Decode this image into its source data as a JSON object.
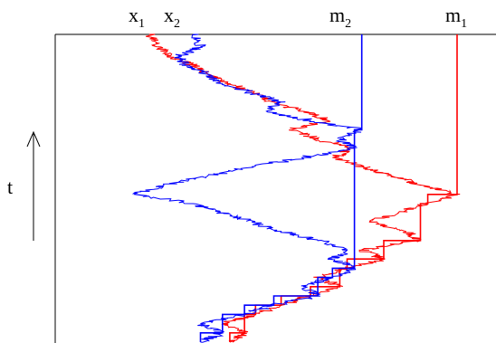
{
  "chart_data": {
    "type": "line",
    "title": "",
    "xlabel": "",
    "ylabel": "t",
    "time_arrow": "up",
    "top_labels": [
      {
        "base": "x",
        "sub": "1"
      },
      {
        "base": "x",
        "sub": "2"
      },
      {
        "base": "m",
        "sub": "2"
      },
      {
        "base": "m",
        "sub": "1"
      }
    ],
    "grid": false,
    "legend": "none",
    "series": [
      {
        "color": "#ff0000",
        "t": [
          0.0,
          0.03,
          0.06,
          0.09,
          0.12,
          0.15,
          0.18,
          0.21,
          0.24,
          0.27,
          0.3,
          0.33,
          0.36,
          0.39,
          0.42,
          0.45,
          0.48,
          0.51,
          0.54,
          0.57,
          0.6,
          0.63,
          0.66,
          0.69,
          0.72,
          0.75,
          0.78,
          0.81,
          0.84,
          0.87,
          0.9,
          0.93,
          0.96,
          1.0
        ],
        "x": [
          0.38,
          0.42,
          0.36,
          0.45,
          0.52,
          0.6,
          0.68,
          0.62,
          0.7,
          0.8,
          0.74,
          0.9,
          0.86,
          0.76,
          0.84,
          0.92,
          1.0,
          0.9,
          0.82,
          0.74,
          0.66,
          0.72,
          0.62,
          0.55,
          0.65,
          0.58,
          0.5,
          0.44,
          0.38,
          0.32,
          0.28,
          0.22,
          0.18,
          0.16
        ],
        "running_max": [
          0.38,
          0.42,
          0.42,
          0.45,
          0.52,
          0.6,
          0.68,
          0.68,
          0.7,
          0.8,
          0.8,
          0.9,
          0.9,
          0.9,
          0.9,
          0.92,
          1.0,
          1.0,
          1.0,
          1.0,
          1.0,
          1.0,
          1.0,
          1.0,
          1.0,
          1.0,
          1.0,
          1.0,
          1.0,
          1.0,
          1.0,
          1.0,
          1.0,
          1.0
        ]
      },
      {
        "color": "#0000ff",
        "t": [
          0.0,
          0.03,
          0.06,
          0.09,
          0.12,
          0.15,
          0.18,
          0.21,
          0.24,
          0.27,
          0.3,
          0.33,
          0.36,
          0.39,
          0.42,
          0.45,
          0.48,
          0.51,
          0.54,
          0.57,
          0.6,
          0.63,
          0.66,
          0.69,
          0.72,
          0.75,
          0.78,
          0.81,
          0.84,
          0.87,
          0.9,
          0.93,
          0.96,
          1.0
        ],
        "x": [
          0.3,
          0.36,
          0.3,
          0.42,
          0.5,
          0.62,
          0.58,
          0.66,
          0.72,
          0.66,
          0.7,
          0.62,
          0.52,
          0.44,
          0.36,
          0.28,
          0.12,
          0.2,
          0.32,
          0.44,
          0.58,
          0.72,
          0.68,
          0.74,
          0.6,
          0.48,
          0.52,
          0.44,
          0.36,
          0.32,
          0.26,
          0.24,
          0.3,
          0.28
        ],
        "running_max": [
          0.3,
          0.36,
          0.36,
          0.42,
          0.5,
          0.62,
          0.62,
          0.66,
          0.72,
          0.72,
          0.72,
          0.72,
          0.72,
          0.72,
          0.72,
          0.72,
          0.72,
          0.72,
          0.72,
          0.72,
          0.72,
          0.72,
          0.72,
          0.74,
          0.74,
          0.74,
          0.74,
          0.74,
          0.74,
          0.74,
          0.74,
          0.74,
          0.74,
          0.74
        ]
      }
    ]
  }
}
